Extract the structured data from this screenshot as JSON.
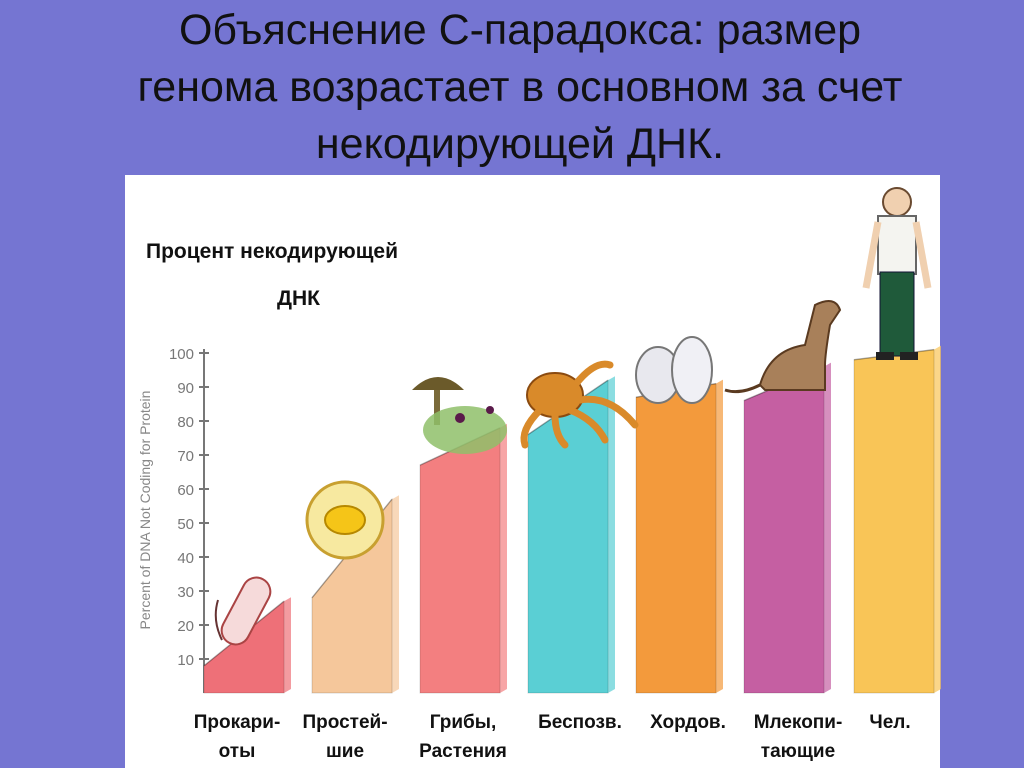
{
  "slide": {
    "title_lines": [
      "Объяснение С-парадокса: размер",
      "генома возрастает в основном за счет",
      "некодирующей ДНК."
    ]
  },
  "chart_heading": {
    "line1": "Процент некодирующей",
    "line2": "ДНК"
  },
  "colors": {
    "background": "#7575d2",
    "panel": "#ffffff",
    "bars": [
      "#ee7078",
      "#f5c79b",
      "#f37f80",
      "#5acfd4",
      "#f39a3c",
      "#c55fa2",
      "#f9c557"
    ]
  },
  "chart_data": {
    "type": "bar",
    "ylabel": "Percent of DNA Not Coding for Protein",
    "ylim": [
      0,
      100
    ],
    "yticks": [
      10,
      20,
      30,
      40,
      50,
      60,
      70,
      80,
      90,
      100
    ],
    "categories": [
      [
        "Прокари-",
        "оты"
      ],
      [
        "Простей-",
        "шие"
      ],
      [
        "Грибы,",
        "Растения"
      ],
      [
        "Беспозв."
      ],
      [
        "Хордов."
      ],
      [
        "Млекопи-",
        "тающие"
      ],
      [
        "Чел."
      ]
    ],
    "ranges": [
      [
        8,
        27
      ],
      [
        28,
        57
      ],
      [
        67,
        78
      ],
      [
        76,
        92
      ],
      [
        87,
        91
      ],
      [
        86,
        96
      ],
      [
        98,
        101
      ]
    ]
  },
  "icons": [
    "bacterium-icon",
    "protozoan-icon",
    "mushroom-plant-icon",
    "octopus-icon",
    "fish-bird-icon",
    "dog-icon",
    "human-icon"
  ]
}
